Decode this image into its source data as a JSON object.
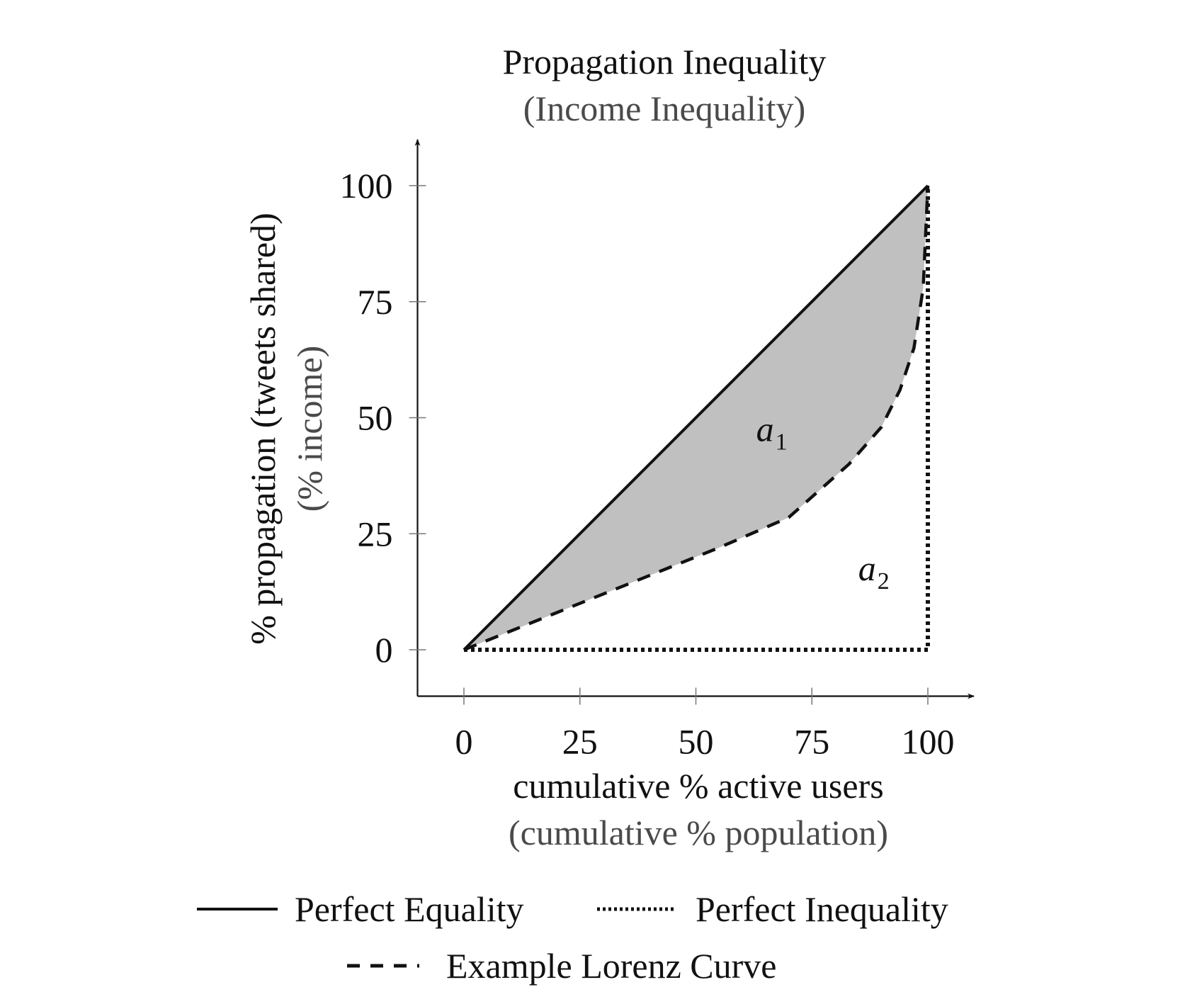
{
  "chart_data": {
    "type": "line",
    "title": "Propagation Inequality",
    "subtitle": "(Income Inequality)",
    "xlabel": "cumulative % active users",
    "xlabel_sub": "(cumulative % population)",
    "ylabel": "% propagation (tweets shared)",
    "ylabel_sub": "(% income)",
    "xlim": [
      -10,
      110
    ],
    "ylim": [
      -10,
      110
    ],
    "x_ticks": [
      0,
      25,
      50,
      75,
      100
    ],
    "y_ticks": [
      0,
      25,
      50,
      75,
      100
    ],
    "x_tick_labels": [
      "0",
      "25",
      "50",
      "75",
      "100"
    ],
    "y_tick_labels": [
      "0",
      "25",
      "50",
      "75",
      "100"
    ],
    "grid": false,
    "legend_position": "bottom",
    "series": [
      {
        "name": "Perfect Equality",
        "style": "solid",
        "x": [
          0,
          100
        ],
        "y": [
          0,
          100
        ]
      },
      {
        "name": "Perfect Inequality",
        "style": "dotted",
        "x": [
          0,
          100,
          100
        ],
        "y": [
          0,
          0,
          100
        ]
      },
      {
        "name": "Example Lorenz Curve",
        "style": "dashed",
        "x": [
          0,
          20,
          40,
          55,
          70,
          83,
          90,
          94,
          97,
          99,
          100
        ],
        "y": [
          0,
          8,
          16,
          22,
          28.5,
          40,
          48,
          56,
          65,
          78,
          100
        ]
      }
    ],
    "shaded_region": {
      "between": [
        "Perfect Equality",
        "Example Lorenz Curve"
      ],
      "color": "#c0c0c0"
    },
    "annotations": [
      {
        "text": "a",
        "subscript": "1",
        "x": 63,
        "y": 45
      },
      {
        "text": "a",
        "subscript": "2",
        "x": 85,
        "y": 15
      }
    ]
  }
}
